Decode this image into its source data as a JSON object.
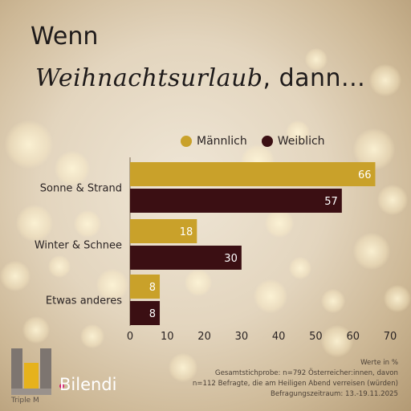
{
  "header": {
    "line1": "Wenn",
    "line2_script": "Weihnachtsurlaub",
    "line2_rest": ", dann..."
  },
  "legend": {
    "male": "Männlich",
    "female": "Weiblich"
  },
  "colors": {
    "male": "#c9a12a",
    "female": "#3b0f13"
  },
  "chart_data": {
    "type": "bar",
    "orientation": "horizontal",
    "categories": [
      "Sonne & Strand",
      "Winter & Schnee",
      "Etwas anderes"
    ],
    "series": [
      {
        "name": "Männlich",
        "values": [
          66,
          18,
          8
        ]
      },
      {
        "name": "Weiblich",
        "values": [
          57,
          30,
          8
        ]
      }
    ],
    "xlim": [
      0,
      70
    ],
    "xticks": [
      0,
      10,
      20,
      30,
      40,
      50,
      60,
      70
    ],
    "grid": false,
    "legend_position": "top"
  },
  "footnote": {
    "line1": "Werte in %",
    "line2": "Gesamtstichprobe: n=792 Österreicher:innen, davon",
    "line3": "n=112 Befragte, die am Heiligen Abend verreisen (würden)",
    "line4": "Befragungszeitraum: 13.-19.11.2025"
  },
  "logos": {
    "triplem": "Triple M",
    "bilendi": "Bilendi"
  }
}
